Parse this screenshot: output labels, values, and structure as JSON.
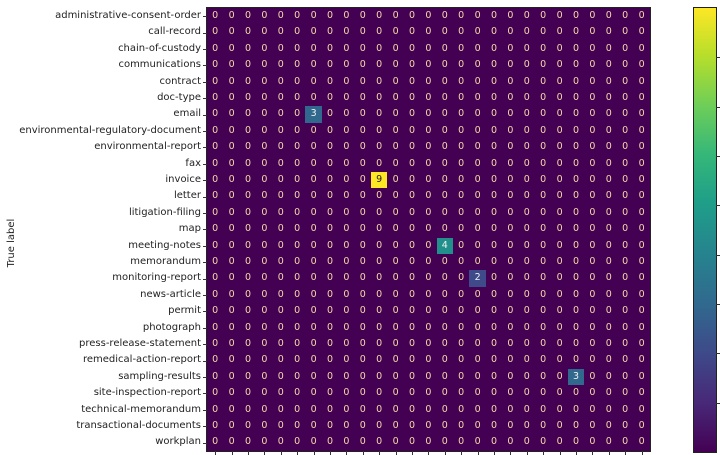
{
  "chart_data": {
    "type": "heatmap",
    "title": "",
    "xlabel": "",
    "ylabel": "True label",
    "row_labels": [
      "administrative-consent-order",
      "call-record",
      "chain-of-custody",
      "communications",
      "contract",
      "doc-type",
      "email",
      "environmental-regulatory-document",
      "environmental-report",
      "fax",
      "invoice",
      "letter",
      "litigation-filing",
      "map",
      "meeting-notes",
      "memorandum",
      "monitoring-report",
      "news-article",
      "permit",
      "photograph",
      "press-release-statement",
      "remedical-action-report",
      "sampling-results",
      "site-inspection-report",
      "technical-memorandum",
      "transactional-documents",
      "workplan"
    ],
    "n_columns": 27,
    "nonzero_cells": [
      {
        "row": 6,
        "col": 6,
        "value": 3,
        "color": "#31688e"
      },
      {
        "row": 10,
        "col": 10,
        "value": 9,
        "color": "#fde725"
      },
      {
        "row": 14,
        "col": 14,
        "value": 4,
        "color": "#21908d"
      },
      {
        "row": 16,
        "col": 16,
        "value": 2,
        "color": "#3e4a89"
      },
      {
        "row": 22,
        "col": 22,
        "value": 3,
        "color": "#31688e"
      }
    ],
    "default_value": 0,
    "colormap": "viridis",
    "colorbar": {
      "min": 0,
      "max": 9,
      "ticks": [
        1,
        2,
        3,
        4,
        5,
        6,
        7,
        8
      ],
      "tick_labels_visible": false
    },
    "zero_color": "#440154",
    "zero_text_color": "#f5d9a6",
    "grid": false
  }
}
